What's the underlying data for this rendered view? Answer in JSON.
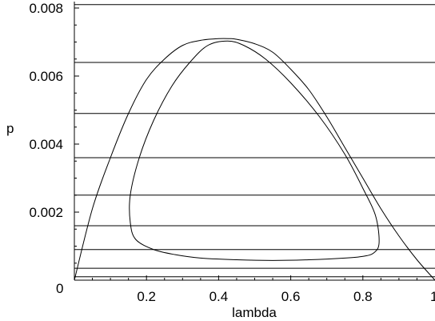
{
  "chart_data": {
    "type": "line",
    "title": "",
    "xlabel": "lambda",
    "ylabel": "p",
    "xlim": [
      0,
      1
    ],
    "ylim": [
      0,
      0.008
    ],
    "x_ticks": [
      {
        "value": 0.2,
        "label": "0.2"
      },
      {
        "value": 0.4,
        "label": "0.4"
      },
      {
        "value": 0.6,
        "label": "0.6"
      },
      {
        "value": 0.8,
        "label": "0.8"
      }
    ],
    "x_origin_label": "0",
    "x_end_label": "1",
    "y_ticks": [
      {
        "value": 0.002,
        "label": "0.002"
      },
      {
        "value": 0.004,
        "label": "0.004"
      },
      {
        "value": 0.006,
        "label": "0.006"
      },
      {
        "value": 0.008,
        "label": "0.008"
      }
    ],
    "horizontal_lines": [
      0.0001,
      0.00035,
      0.0009,
      0.0016,
      0.0025,
      0.0036,
      0.0049,
      0.0064,
      0.0081
    ],
    "series": [
      {
        "x": [
          0.0,
          0.05,
          0.1,
          0.15,
          0.2,
          0.25,
          0.3,
          0.35,
          0.4,
          0.43,
          0.45,
          0.5,
          0.55,
          0.6,
          0.65,
          0.7,
          0.75,
          0.8,
          0.85,
          0.9,
          0.95,
          1.0
        ],
        "y": [
          0.0,
          0.0021,
          0.0036,
          0.0049,
          0.0059,
          0.0065,
          0.0069,
          0.00705,
          0.0071,
          0.0071,
          0.00708,
          0.00695,
          0.0067,
          0.0062,
          0.0056,
          0.0048,
          0.0039,
          0.003,
          0.0021,
          0.0013,
          0.0006,
          0.0
        ]
      },
      {
        "x": [
          0.425,
          0.47,
          0.53,
          0.6,
          0.68,
          0.75,
          0.8,
          0.835,
          0.845,
          0.83,
          0.8,
          0.75,
          0.65,
          0.55,
          0.45,
          0.35,
          0.28,
          0.22,
          0.17,
          0.155,
          0.155,
          0.18,
          0.22,
          0.27,
          0.32,
          0.37,
          0.425
        ],
        "y": [
          0.00703,
          0.0069,
          0.0065,
          0.0058,
          0.0048,
          0.0037,
          0.0027,
          0.0019,
          0.0011,
          0.0008,
          0.0007,
          0.00065,
          0.0006,
          0.00058,
          0.0006,
          0.00065,
          0.00075,
          0.0009,
          0.0012,
          0.0017,
          0.0025,
          0.0036,
          0.0047,
          0.0057,
          0.0064,
          0.0069,
          0.00703
        ]
      }
    ]
  }
}
